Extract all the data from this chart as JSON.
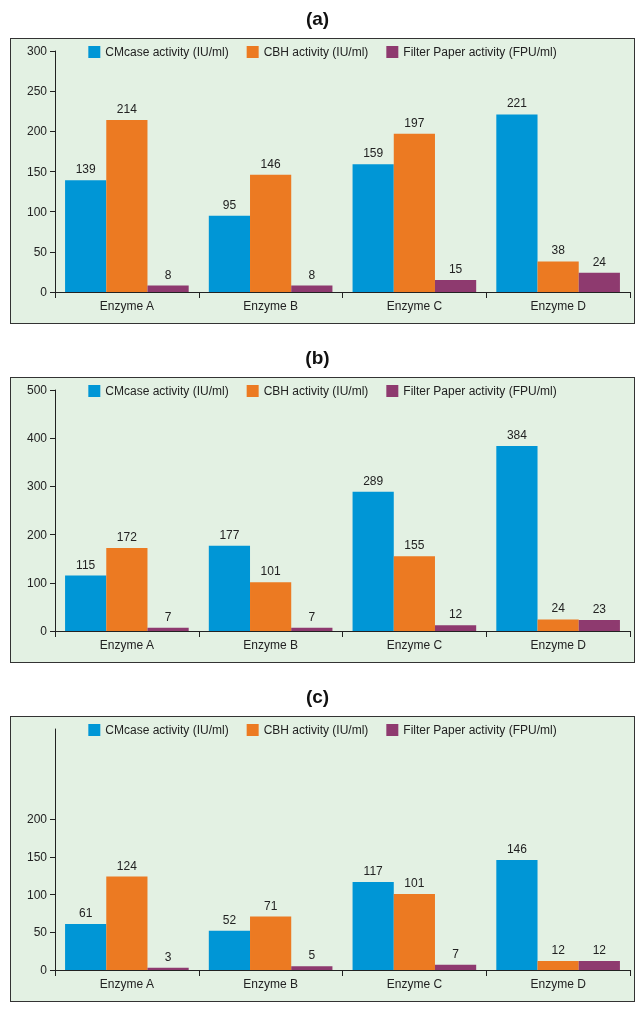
{
  "chart_data": [
    {
      "type": "bar",
      "title": "(a)",
      "categories": [
        "Enzyme A",
        "Enzyme B",
        "Enzyme C",
        "Enzyme D"
      ],
      "series": [
        {
          "name": "CMcase activity (IU/ml)",
          "color": "#0096d6",
          "values": [
            139,
            95,
            159,
            221
          ]
        },
        {
          "name": "CBH activity (IU/ml)",
          "color": "#ec7a22",
          "values": [
            214,
            146,
            197,
            38
          ]
        },
        {
          "name": "Filter Paper activity (FPU/ml)",
          "color": "#8e3a6f",
          "values": [
            8,
            8,
            15,
            24
          ]
        }
      ],
      "ylim": [
        0,
        300
      ],
      "yticks": [
        0,
        50,
        100,
        150,
        200,
        250,
        300
      ],
      "data_labels": true,
      "legend": "top",
      "grid": false
    },
    {
      "type": "bar",
      "title": "(b)",
      "categories": [
        "Enzyme A",
        "Enzyme B",
        "Enzyme C",
        "Enzyme D"
      ],
      "series": [
        {
          "name": "CMcase activity (IU/ml)",
          "color": "#0096d6",
          "values": [
            115,
            177,
            289,
            384
          ]
        },
        {
          "name": "CBH activity (IU/ml)",
          "color": "#ec7a22",
          "values": [
            172,
            101,
            155,
            24
          ]
        },
        {
          "name": "Filter Paper activity (FPU/ml)",
          "color": "#8e3a6f",
          "values": [
            7,
            7,
            12,
            23
          ]
        }
      ],
      "ylim": [
        0,
        500
      ],
      "yticks": [
        0,
        100,
        200,
        300,
        400,
        500
      ],
      "data_labels": true,
      "legend": "top",
      "grid": false
    },
    {
      "type": "bar",
      "title": "(c)",
      "categories": [
        "Enzyme A",
        "Enzyme B",
        "Enzyme C",
        "Enzyme D"
      ],
      "series": [
        {
          "name": "CMcase activity (IU/ml)",
          "color": "#0096d6",
          "values": [
            61,
            52,
            117,
            146
          ]
        },
        {
          "name": "CBH activity (IU/ml)",
          "color": "#ec7a22",
          "values": [
            124,
            71,
            101,
            12
          ]
        },
        {
          "name": "Filter Paper activity (FPU/ml)",
          "color": "#8e3a6f",
          "values": [
            3,
            5,
            7,
            12
          ]
        }
      ],
      "ylim": [
        0,
        320
      ],
      "yticks": [
        0,
        50,
        100,
        150,
        200
      ],
      "data_labels": true,
      "legend": "top",
      "grid": false
    }
  ]
}
